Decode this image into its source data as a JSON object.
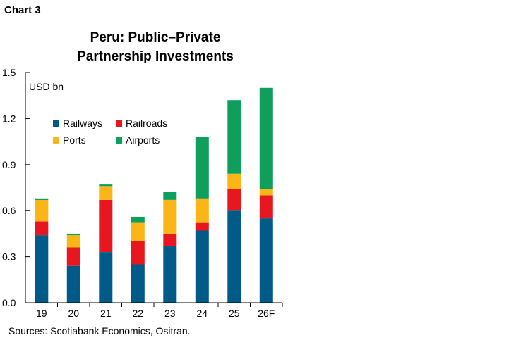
{
  "chart_label": "Chart 3",
  "source": "Sources: Scotiabank Economics, Ositran.",
  "chart_data": {
    "type": "bar",
    "stacked": true,
    "title_lines": [
      "Peru: Public–Private",
      "Partnership Investments"
    ],
    "ylabel": "USD bn",
    "categories": [
      "19",
      "20",
      "21",
      "22",
      "23",
      "24",
      "25",
      "26F"
    ],
    "yticks": [
      "0.0",
      "0.3",
      "0.6",
      "0.9",
      "1.2",
      "1.5"
    ],
    "ylim": [
      0,
      1.5
    ],
    "legend_placement": "top-left",
    "series": [
      {
        "name": "Railways",
        "color": "#005a87",
        "values": [
          0.44,
          0.24,
          0.33,
          0.25,
          0.37,
          0.47,
          0.6,
          0.55
        ]
      },
      {
        "name": "Railroads",
        "color": "#e8161f",
        "values": [
          0.09,
          0.12,
          0.34,
          0.15,
          0.08,
          0.05,
          0.14,
          0.15
        ]
      },
      {
        "name": "Ports",
        "color": "#fbb515",
        "values": [
          0.14,
          0.08,
          0.09,
          0.12,
          0.22,
          0.16,
          0.1,
          0.04
        ]
      },
      {
        "name": "Airports",
        "color": "#0e9f5d",
        "values": [
          0.01,
          0.01,
          0.01,
          0.04,
          0.05,
          0.4,
          0.48,
          0.66
        ]
      }
    ]
  }
}
